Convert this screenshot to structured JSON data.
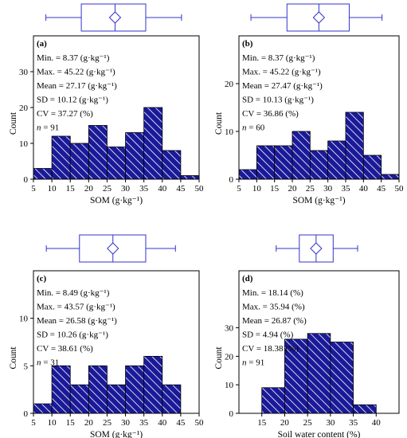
{
  "colors": {
    "bar_fill": "#1a1a99",
    "box_stroke": "#3333cc",
    "hatch": "#ffffff"
  },
  "chart_data": [
    {
      "type": "bar",
      "panel_label": "(a)",
      "stats": [
        "Min. = 8.37 (g·kg⁻¹)",
        "Max. = 45.22 (g·kg⁻¹)",
        "Mean = 27.17 (g·kg⁻¹)",
        "SD = 10.12 (g·kg⁻¹)",
        "CV = 37.27 (%)",
        "n = 91"
      ],
      "bins": [
        [
          5,
          10
        ],
        [
          10,
          15
        ],
        [
          15,
          20
        ],
        [
          20,
          25
        ],
        [
          25,
          30
        ],
        [
          30,
          35
        ],
        [
          35,
          40
        ],
        [
          40,
          45
        ],
        [
          45,
          50
        ]
      ],
      "values": [
        3,
        12,
        10,
        15,
        9,
        13,
        20,
        8,
        1
      ],
      "xlabel": "SOM  (g·kg⁻¹)",
      "ylabel": "Count",
      "xlim": [
        5,
        50
      ],
      "ylim": [
        0,
        40
      ],
      "xticks": [
        "5",
        "10",
        "15",
        "20",
        "25",
        "30",
        "35",
        "40",
        "45",
        "50"
      ],
      "yticks": [
        "0",
        "10",
        "20",
        "30"
      ],
      "boxplot": {
        "whisker_low": 8.37,
        "q1": 18,
        "median": 27.17,
        "mean": 27.17,
        "q3": 35.5,
        "whisker_high": 45.22
      }
    },
    {
      "type": "bar",
      "panel_label": "(b)",
      "stats": [
        "Min. = 8.37 (g·kg⁻¹)",
        "Max. = 45.22 (g·kg⁻¹)",
        "Mean = 27.47 (g·kg⁻¹)",
        "SD = 10.13 (g·kg⁻¹)",
        "CV = 36.86 (%)",
        "n = 60"
      ],
      "bins": [
        [
          5,
          10
        ],
        [
          10,
          15
        ],
        [
          15,
          20
        ],
        [
          20,
          25
        ],
        [
          25,
          30
        ],
        [
          30,
          35
        ],
        [
          35,
          40
        ],
        [
          40,
          45
        ],
        [
          45,
          50
        ]
      ],
      "values": [
        2,
        7,
        7,
        10,
        6,
        8,
        14,
        5,
        1
      ],
      "xlabel": "SOM  (g·kg⁻¹)",
      "ylabel": "Count",
      "xlim": [
        5,
        50
      ],
      "ylim": [
        0,
        30
      ],
      "xticks": [
        "5",
        "10",
        "15",
        "20",
        "25",
        "30",
        "35",
        "40",
        "45",
        "50"
      ],
      "yticks": [
        "0",
        "10",
        "20"
      ],
      "boxplot": {
        "whisker_low": 8.37,
        "q1": 18.5,
        "median": 27.47,
        "mean": 27.47,
        "q3": 36,
        "whisker_high": 45.22
      }
    },
    {
      "type": "bar",
      "panel_label": "(c)",
      "stats": [
        "Min. = 8.49 (g·kg⁻¹)",
        "Max. = 43.57 (g·kg⁻¹)",
        "Mean = 26.58 (g·kg⁻¹)",
        "SD = 10.26 (g·kg⁻¹)",
        "CV = 38.61 (%)",
        "n = 31"
      ],
      "bins": [
        [
          5,
          10
        ],
        [
          10,
          15
        ],
        [
          15,
          20
        ],
        [
          20,
          25
        ],
        [
          25,
          30
        ],
        [
          30,
          35
        ],
        [
          35,
          40
        ],
        [
          40,
          45
        ]
      ],
      "values": [
        1,
        5,
        3,
        5,
        3,
        5,
        6,
        3
      ],
      "xlabel": "SOM (g·kg⁻¹)",
      "ylabel": "Count",
      "xlim": [
        5,
        50
      ],
      "ylim": [
        0,
        15
      ],
      "xticks": [
        "5",
        "10",
        "15",
        "20",
        "25",
        "30",
        "35",
        "40",
        "45",
        "50"
      ],
      "yticks": [
        "0",
        "5",
        "10"
      ],
      "boxplot": {
        "whisker_low": 8.49,
        "q1": 17.5,
        "median": 26.58,
        "mean": 26.58,
        "q3": 35.5,
        "whisker_high": 43.57
      }
    },
    {
      "type": "bar",
      "panel_label": "(d)",
      "stats": [
        "Min. = 18.14 (%)",
        "Max. = 35.94 (%)",
        "Mean = 26.87 (%)",
        "SD = 4.94 (%)",
        "CV = 18.38 (%)",
        "n = 91"
      ],
      "bins": [
        [
          15,
          20
        ],
        [
          20,
          25
        ],
        [
          25,
          30
        ],
        [
          30,
          35
        ],
        [
          35,
          40
        ]
      ],
      "values": [
        9,
        26,
        28,
        25,
        3
      ],
      "xlabel": "Soil water content (%)",
      "ylabel": "Count",
      "xlim": [
        10,
        45
      ],
      "ylim": [
        0,
        50
      ],
      "xticks": [
        "15",
        "20",
        "25",
        "30",
        "35",
        "40"
      ],
      "yticks": [
        "0",
        "10",
        "20",
        "30"
      ],
      "boxplot": {
        "whisker_low": 18.14,
        "q1": 23.2,
        "median": 26.87,
        "mean": 26.87,
        "q3": 30.6,
        "whisker_high": 35.94
      }
    }
  ]
}
